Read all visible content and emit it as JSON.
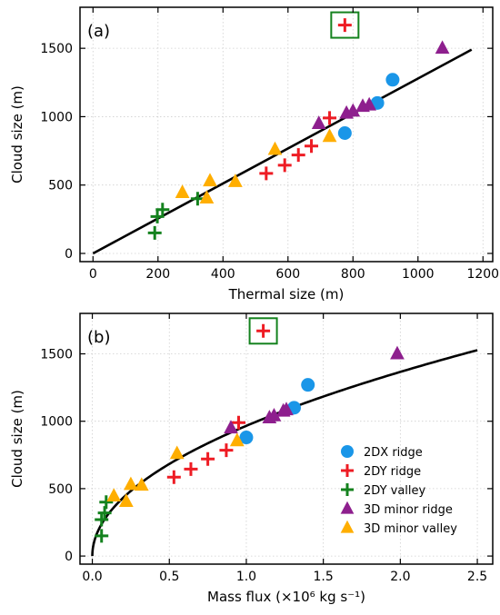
{
  "colors": {
    "2dx_ridge": "#1a96e8",
    "2dy_ridge": "#ee1c24",
    "2dy_valley": "#14821e",
    "3d_minor_ridge": "#8e1f8e",
    "3d_minor_valley": "#ffae00",
    "fit_line": "#000000",
    "highlight_box": "#14821e",
    "grid": "#cfcfcf"
  },
  "chart_data": [
    {
      "type": "scatter",
      "panel_label": "(a)",
      "xlabel": "Thermal size (m)",
      "ylabel": "Cloud size (m)",
      "xlim": [
        -40,
        1230
      ],
      "ylim": [
        -60,
        1800
      ],
      "xticks": [
        0,
        200,
        400,
        600,
        800,
        1000,
        1200
      ],
      "yticks": [
        0,
        500,
        1000,
        1500
      ],
      "grid": true,
      "legend": "none",
      "series": [
        {
          "key": "2dx_ridge",
          "marker": "circle",
          "points": [
            [
              775,
              880
            ],
            [
              875,
              1100
            ],
            [
              922,
              1270
            ]
          ]
        },
        {
          "key": "2dy_ridge",
          "marker": "plus",
          "points": [
            [
              533,
              585
            ],
            [
              590,
              645
            ],
            [
              632,
              720
            ],
            [
              672,
              785
            ],
            [
              728,
              990
            ],
            [
              775,
              1670
            ]
          ]
        },
        {
          "key": "2dy_valley",
          "marker": "plus",
          "points": [
            [
              190,
              150
            ],
            [
              198,
              270
            ],
            [
              214,
              320
            ],
            [
              322,
              400
            ]
          ]
        },
        {
          "key": "3d_minor_ridge",
          "marker": "triangle",
          "points": [
            [
              695,
              950
            ],
            [
              780,
              1025
            ],
            [
              800,
              1040
            ],
            [
              830,
              1075
            ],
            [
              850,
              1085
            ],
            [
              1075,
              1500
            ]
          ]
        },
        {
          "key": "3d_minor_valley",
          "marker": "triangle",
          "points": [
            [
              275,
              445
            ],
            [
              350,
              405
            ],
            [
              360,
              530
            ],
            [
              438,
              525
            ],
            [
              560,
              760
            ],
            [
              728,
              855
            ]
          ]
        }
      ],
      "fit_line": [
        [
          0,
          0
        ],
        [
          1165,
          1490
        ]
      ],
      "highlight": [
        775,
        1670
      ]
    },
    {
      "type": "scatter",
      "panel_label": "(b)",
      "xlabel": "Mass flux (×10⁶ kg s⁻¹)",
      "ylabel": "Cloud size (m)",
      "xlim": [
        -0.08,
        2.6
      ],
      "ylim": [
        -60,
        1800
      ],
      "xticks": [
        0.0,
        0.5,
        1.0,
        1.5,
        2.0,
        2.5
      ],
      "xtick_labels": [
        "0.0",
        "0.5",
        "1.0",
        "1.5",
        "2.0",
        "2.5"
      ],
      "yticks": [
        0,
        500,
        1000,
        1500
      ],
      "grid": true,
      "legend": "lower-right",
      "series": [
        {
          "key": "2dx_ridge",
          "name": "2DX ridge",
          "marker": "circle",
          "points": [
            [
              1.0,
              880
            ],
            [
              1.31,
              1100
            ],
            [
              1.4,
              1270
            ]
          ]
        },
        {
          "key": "2dy_ridge",
          "name": "2DY ridge",
          "marker": "plus",
          "points": [
            [
              0.53,
              585
            ],
            [
              0.64,
              645
            ],
            [
              0.75,
              720
            ],
            [
              0.87,
              785
            ],
            [
              0.95,
              990
            ],
            [
              1.11,
              1670
            ]
          ]
        },
        {
          "key": "2dy_valley",
          "name": "2DY valley",
          "marker": "plus",
          "points": [
            [
              0.06,
              150
            ],
            [
              0.06,
              270
            ],
            [
              0.08,
              320
            ],
            [
              0.09,
              400
            ]
          ]
        },
        {
          "key": "3d_minor_ridge",
          "name": "3D minor ridge",
          "marker": "triangle",
          "points": [
            [
              0.9,
              950
            ],
            [
              1.15,
              1025
            ],
            [
              1.18,
              1040
            ],
            [
              1.24,
              1075
            ],
            [
              1.26,
              1085
            ],
            [
              1.98,
              1500
            ]
          ]
        },
        {
          "key": "3d_minor_valley",
          "name": "3D minor valley",
          "marker": "triangle",
          "points": [
            [
              0.14,
              445
            ],
            [
              0.22,
              405
            ],
            [
              0.25,
              530
            ],
            [
              0.32,
              525
            ],
            [
              0.55,
              760
            ],
            [
              0.94,
              855
            ]
          ]
        }
      ],
      "fit_curve": {
        "coef": 966,
        "exponent": 0.5,
        "xmin": 0.0,
        "xmax": 2.5
      },
      "highlight": [
        1.11,
        1670
      ]
    }
  ]
}
